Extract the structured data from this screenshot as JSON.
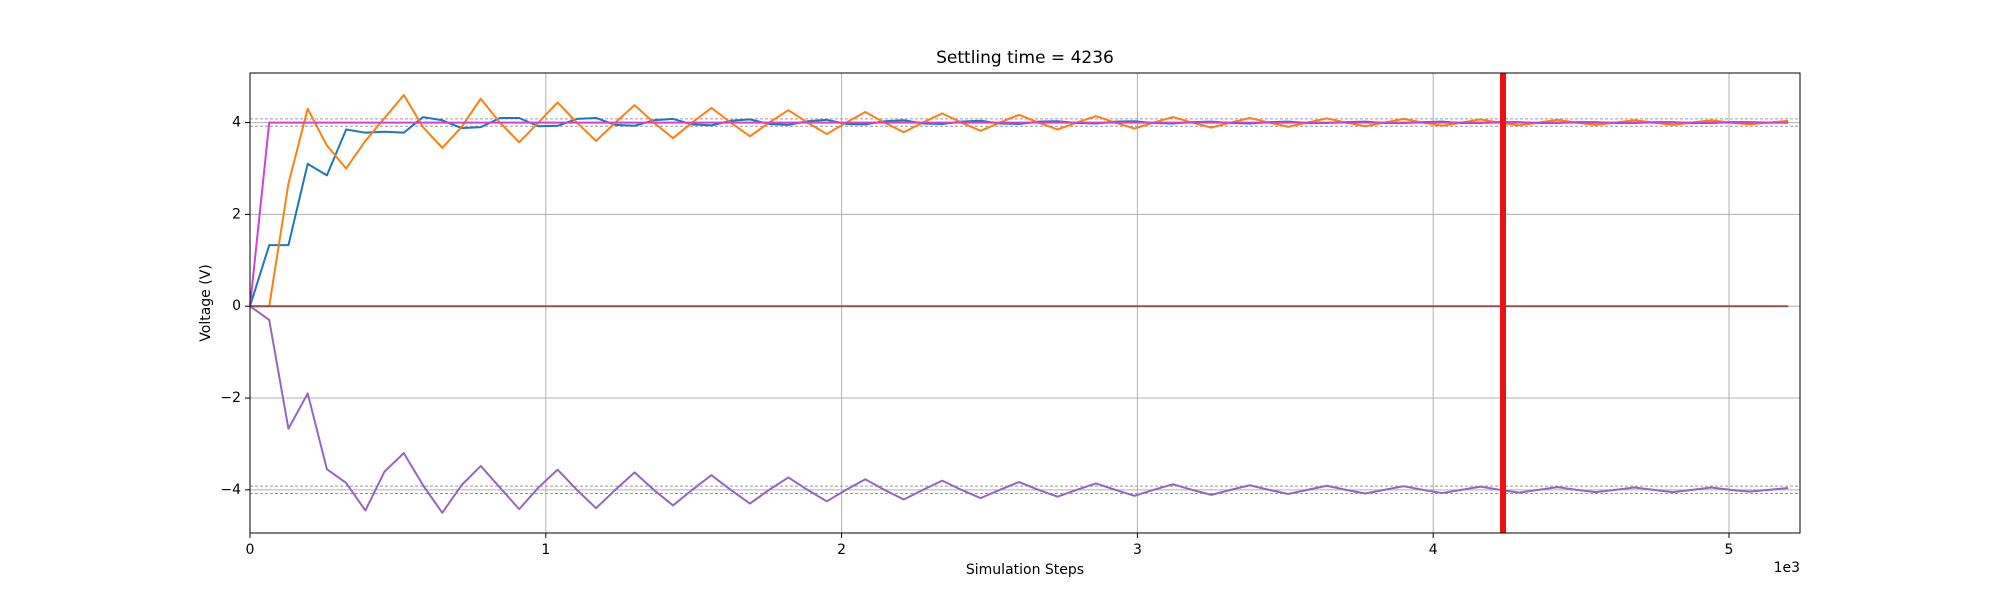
{
  "chart_data": {
    "type": "line",
    "title": "Settling time = 4236",
    "xlabel": "Simulation Steps",
    "ylabel": "Voltage (V)",
    "x_offset_text": "1e3",
    "x": [
      0,
      65,
      130,
      195,
      260,
      325,
      390,
      455,
      520,
      585,
      650,
      715,
      780,
      845,
      910,
      975,
      1040,
      1105,
      1170,
      1235,
      1300,
      1365,
      1430,
      1495,
      1560,
      1625,
      1690,
      1755,
      1820,
      1885,
      1950,
      2015,
      2080,
      2145,
      2210,
      2275,
      2340,
      2405,
      2470,
      2535,
      2600,
      2665,
      2730,
      2795,
      2860,
      2925,
      2990,
      3055,
      3120,
      3185,
      3250,
      3315,
      3380,
      3445,
      3510,
      3575,
      3640,
      3705,
      3770,
      3835,
      3900,
      3965,
      4030,
      4095,
      4160,
      4225,
      4290,
      4355,
      4420,
      4485,
      4550,
      4615,
      4680,
      4745,
      4810,
      4875,
      4940,
      5005,
      5070,
      5135,
      5200
    ],
    "series": [
      {
        "color": "#1f77b4",
        "values": [
          0,
          1.33,
          1.33,
          3.1,
          2.85,
          3.85,
          3.78,
          3.8,
          3.78,
          4.12,
          4.05,
          3.88,
          3.9,
          4.1,
          4.1,
          3.92,
          3.93,
          4.08,
          4.1,
          3.95,
          3.93,
          4.05,
          4.08,
          3.96,
          3.94,
          4.04,
          4.07,
          3.97,
          3.95,
          4.03,
          4.06,
          3.97,
          3.96,
          4.03,
          4.05,
          3.98,
          3.97,
          4.02,
          4.04,
          3.98,
          3.97,
          4.02,
          4.03,
          3.99,
          3.98,
          4.02,
          4.03,
          3.99,
          3.98,
          4.01,
          4.02,
          3.99,
          3.98,
          4.01,
          4.02,
          3.99,
          3.99,
          4.01,
          4.02,
          3.99,
          3.99,
          4.01,
          4.02,
          3.99,
          3.99,
          4.01,
          4.01,
          3.99,
          3.99,
          4.01,
          4.01,
          3.99,
          3.99,
          4.01,
          4.01,
          3.99,
          3.99,
          4.01,
          4.01,
          4.0,
          4.0
        ]
      },
      {
        "color": "#ff7f0e",
        "values": [
          0,
          0,
          2.67,
          4.3,
          3.5,
          3.0,
          3.6,
          4.1,
          4.6,
          3.9,
          3.45,
          3.9,
          4.52,
          4.0,
          3.57,
          4.0,
          4.44,
          4.0,
          3.6,
          4.0,
          4.38,
          4.0,
          3.66,
          4.0,
          4.32,
          4.0,
          3.7,
          4.0,
          4.27,
          4.0,
          3.75,
          4.0,
          4.23,
          4.0,
          3.79,
          4.0,
          4.2,
          4.0,
          3.82,
          4.0,
          4.17,
          4.0,
          3.85,
          4.0,
          4.14,
          4.0,
          3.87,
          4.0,
          4.12,
          4.0,
          3.89,
          4.0,
          4.1,
          4.0,
          3.91,
          4.0,
          4.09,
          4.0,
          3.92,
          4.0,
          4.08,
          4.0,
          3.93,
          4.0,
          4.07,
          4.0,
          3.94,
          4.0,
          4.06,
          4.0,
          3.95,
          4.0,
          4.05,
          4.0,
          3.95,
          4.0,
          4.05,
          4.0,
          3.96,
          4.0,
          4.04
        ]
      },
      {
        "color": "#d43fd4",
        "values": [
          0,
          4,
          4,
          4,
          4,
          4,
          4,
          4,
          4,
          4,
          4,
          4,
          4,
          4,
          4,
          4,
          4,
          4,
          4,
          4,
          4,
          4,
          4,
          4,
          4,
          4,
          4,
          4,
          4,
          4,
          4,
          4,
          4,
          4,
          4,
          4,
          4,
          4,
          4,
          4,
          4,
          4,
          4,
          4,
          4,
          4,
          4,
          4,
          4,
          4,
          4,
          4,
          4,
          4,
          4,
          4,
          4,
          4,
          4,
          4,
          4,
          4,
          4,
          4,
          4,
          4,
          4,
          4,
          4,
          4,
          4,
          4,
          4,
          4,
          4,
          4,
          4,
          4,
          4,
          4,
          4
        ]
      },
      {
        "color": "#9467bd",
        "values": [
          0,
          -0.3,
          -2.67,
          -1.9,
          -3.55,
          -3.85,
          -4.45,
          -3.6,
          -3.2,
          -3.9,
          -4.5,
          -3.9,
          -3.48,
          -3.95,
          -4.42,
          -3.95,
          -3.56,
          -4.0,
          -4.4,
          -4.0,
          -3.62,
          -4.0,
          -4.34,
          -4.0,
          -3.68,
          -4.0,
          -4.3,
          -4.0,
          -3.73,
          -4.0,
          -4.25,
          -4.0,
          -3.77,
          -4.0,
          -4.21,
          -4.0,
          -3.8,
          -4.0,
          -4.18,
          -4.0,
          -3.83,
          -4.0,
          -4.15,
          -4.0,
          -3.86,
          -4.0,
          -4.13,
          -4.0,
          -3.88,
          -4.0,
          -4.11,
          -4.0,
          -3.9,
          -4.0,
          -4.09,
          -4.0,
          -3.91,
          -4.0,
          -4.08,
          -4.0,
          -3.92,
          -4.0,
          -4.07,
          -4.0,
          -3.93,
          -4.0,
          -4.06,
          -4.0,
          -3.94,
          -4.0,
          -4.05,
          -4.0,
          -3.95,
          -4.0,
          -4.05,
          -4.0,
          -3.95,
          -4.0,
          -4.04,
          -4.0,
          -3.96
        ]
      },
      {
        "color": "#8c564b",
        "values": [
          0,
          0,
          0,
          0,
          0,
          0,
          0,
          0,
          0,
          0,
          0,
          0,
          0,
          0,
          0,
          0,
          0,
          0,
          0,
          0,
          0,
          0,
          0,
          0,
          0,
          0,
          0,
          0,
          0,
          0,
          0,
          0,
          0,
          0,
          0,
          0,
          0,
          0,
          0,
          0,
          0,
          0,
          0,
          0,
          0,
          0,
          0,
          0,
          0,
          0,
          0,
          0,
          0,
          0,
          0,
          0,
          0,
          0,
          0,
          0,
          0,
          0,
          0,
          0,
          0,
          0,
          0,
          0,
          0,
          0,
          0,
          0,
          0,
          0,
          0,
          0,
          0,
          0,
          0,
          0,
          0
        ]
      }
    ],
    "tolerance_lines": [
      4.08,
      3.92,
      -3.92,
      -4.08
    ],
    "tolerance_color": "#999999",
    "settling_time": 4236,
    "settling_color": "#ee1111",
    "xlim": [
      0,
      5240
    ],
    "ylim": [
      -4.94,
      5.08
    ],
    "xticks": [
      0,
      {
        "value": 1000,
        "label": "1"
      },
      {
        "value": 2000,
        "label": "2"
      },
      {
        "value": 3000,
        "label": "3"
      },
      {
        "value": 4000,
        "label": "4"
      },
      {
        "value": 5000,
        "label": "5"
      }
    ],
    "yticks": [
      {
        "value": -4,
        "label": "−4"
      },
      {
        "value": -2,
        "label": "−2"
      },
      0,
      2,
      4
    ],
    "grid": true
  }
}
